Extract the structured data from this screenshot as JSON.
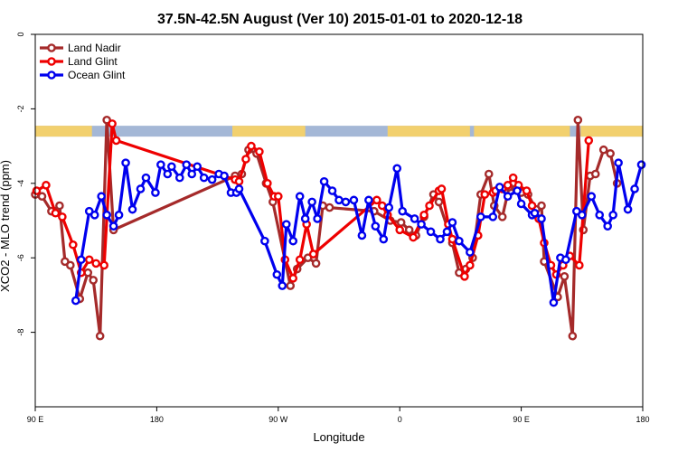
{
  "chart_data": {
    "type": "line",
    "title": "37.5N-42.5N August (Ver 10)   2015-01-01 to 2020-12-18",
    "xlabel": "Longitude",
    "ylabel": "XCO2 - MLO trend (ppm)",
    "x_axis_scale": "linear, wraps through date line (90 E to 180 on a 450-degree span)",
    "xlim": [
      0,
      450
    ],
    "ylim": [
      -10,
      0
    ],
    "y_reversed": false,
    "xticks": [
      {
        "pos": 0,
        "label": "90 E"
      },
      {
        "pos": 90,
        "label": "180"
      },
      {
        "pos": 180,
        "label": "90 W"
      },
      {
        "pos": 270,
        "label": "0"
      },
      {
        "pos": 360,
        "label": "90 E"
      },
      {
        "pos": 450,
        "label": "180"
      }
    ],
    "yticks": [
      0,
      -2,
      -4,
      -6,
      -8
    ],
    "grid": false,
    "legend_position": "top-left",
    "land_band": {
      "y_center": -2.6,
      "sea_color": "#A4B7D6",
      "land_color": "#F2D06E",
      "land_ranges": [
        [
          0,
          42
        ],
        [
          146,
          200
        ],
        [
          261,
          322
        ],
        [
          325,
          396
        ],
        [
          404,
          450
        ]
      ]
    },
    "series": [
      {
        "name": "Land Nadir",
        "color": "#A52A2A",
        "x": [
          0,
          5,
          12,
          18,
          22,
          26,
          33,
          39,
          43,
          48,
          53,
          58,
          148,
          153,
          158,
          164,
          171,
          176,
          189,
          194,
          202,
          208,
          213,
          218,
          251,
          263,
          271,
          277,
          282,
          288,
          295,
          299,
          309,
          314,
          319,
          324,
          330,
          336,
          340,
          346,
          351,
          356,
          360,
          365,
          371,
          375,
          377,
          387,
          392,
          398,
          402,
          406,
          411,
          415,
          421,
          426,
          431
        ],
        "values": [
          -4.3,
          -4.35,
          -4.75,
          -4.6,
          -6.1,
          -6.2,
          -7.1,
          -6.4,
          -6.6,
          -8.1,
          -2.3,
          -5.25,
          -3.8,
          -3.75,
          -3.1,
          -3.2,
          -4.0,
          -4.5,
          -6.75,
          -6.3,
          -6.0,
          -6.15,
          -4.6,
          -4.65,
          -4.75,
          -5.0,
          -5.05,
          -5.25,
          -5.4,
          -4.9,
          -4.3,
          -4.5,
          -5.6,
          -6.4,
          -6.3,
          -6.0,
          -4.3,
          -3.75,
          -4.6,
          -4.9,
          -4.1,
          -4.15,
          -4.25,
          -4.3,
          -4.7,
          -4.6,
          -6.1,
          -7.05,
          -6.5,
          -8.1,
          -2.3,
          -5.25,
          -3.8,
          -3.75,
          -3.1,
          -3.2,
          -4.0
        ]
      },
      {
        "name": "Land Glint",
        "color": "#EE0000",
        "x": [
          1,
          8,
          15,
          20,
          28,
          34,
          40,
          45,
          51,
          57,
          60,
          148,
          151,
          156,
          160,
          166,
          172,
          177,
          180,
          185,
          191,
          196,
          201,
          206,
          253,
          257,
          261,
          270,
          280,
          288,
          292,
          299,
          301,
          306,
          309,
          318,
          322,
          328,
          333,
          339,
          341,
          346,
          350,
          354,
          358,
          364,
          368,
          373,
          377,
          382,
          386,
          391,
          396,
          403,
          410
        ],
        "values": [
          -4.2,
          -4.05,
          -4.8,
          -4.9,
          -5.65,
          -6.4,
          -6.05,
          -6.15,
          -6.2,
          -2.4,
          -2.85,
          -3.9,
          -3.95,
          -3.35,
          -3.0,
          -3.15,
          -4.0,
          -4.35,
          -4.35,
          -6.05,
          -6.55,
          -6.05,
          -5.1,
          -5.9,
          -4.45,
          -4.6,
          -4.85,
          -5.25,
          -5.45,
          -4.85,
          -4.6,
          -4.2,
          -4.15,
          -5.1,
          -5.5,
          -6.5,
          -6.2,
          -5.4,
          -4.3,
          -4.25,
          -4.2,
          -4.15,
          -4.05,
          -3.85,
          -4.05,
          -4.2,
          -4.6,
          -4.95,
          -5.6,
          -6.2,
          -6.45,
          -6.2,
          -5.95,
          -6.2,
          -2.85
        ]
      },
      {
        "name": "Ocean Glint",
        "color": "#0000EE",
        "x": [
          30,
          34,
          40,
          44,
          49,
          53,
          58,
          62,
          67,
          72,
          78,
          82,
          89,
          93,
          98,
          101,
          107,
          112,
          116,
          120,
          125,
          131,
          136,
          140,
          145,
          149,
          151,
          170,
          179,
          183,
          186,
          191,
          196,
          200,
          205,
          209,
          214,
          220,
          225,
          230,
          236,
          242,
          247,
          252,
          258,
          262,
          268,
          272,
          281,
          286,
          293,
          300,
          305,
          309,
          314,
          322,
          330,
          339,
          344,
          350,
          357,
          360,
          368,
          370,
          375,
          384,
          389,
          393,
          401,
          405,
          412,
          418,
          424,
          428,
          432,
          439,
          444,
          449
        ],
        "values": [
          -7.15,
          -6.05,
          -4.75,
          -4.85,
          -4.35,
          -4.85,
          -5.15,
          -4.85,
          -3.45,
          -4.7,
          -4.15,
          -3.85,
          -4.25,
          -3.5,
          -3.75,
          -3.55,
          -3.85,
          -3.5,
          -3.75,
          -3.55,
          -3.85,
          -3.9,
          -3.75,
          -3.8,
          -4.25,
          -4.25,
          -4.15,
          -5.55,
          -6.45,
          -6.75,
          -5.1,
          -5.55,
          -4.35,
          -4.95,
          -4.5,
          -4.95,
          -3.95,
          -4.2,
          -4.45,
          -4.5,
          -4.45,
          -5.4,
          -4.45,
          -5.15,
          -5.5,
          -4.65,
          -3.6,
          -4.75,
          -4.95,
          -5.1,
          -5.3,
          -5.5,
          -5.3,
          -5.05,
          -5.55,
          -5.85,
          -4.9,
          -4.9,
          -4.1,
          -4.35,
          -4.2,
          -4.55,
          -4.85,
          -4.8,
          -4.95,
          -7.2,
          -6.0,
          -6.05,
          -4.75,
          -4.85,
          -4.35,
          -4.85,
          -5.15,
          -4.85,
          -3.45,
          -4.7,
          -4.15,
          -3.5
        ]
      }
    ]
  }
}
